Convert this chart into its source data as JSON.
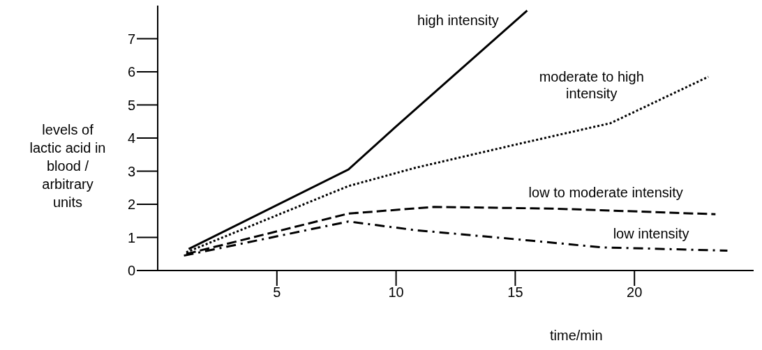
{
  "chart_data": {
    "type": "line",
    "xlabel": "time/min",
    "ylabel": "levels of lactic acid in blood / arbitrary units",
    "xlim": [
      0,
      25
    ],
    "ylim": [
      0,
      8
    ],
    "xticks": [
      5,
      10,
      15,
      20
    ],
    "yticks": [
      0,
      1,
      2,
      3,
      4,
      5,
      6,
      7
    ],
    "marker": "none",
    "series": [
      {
        "name": "high intensity",
        "color": "#000000",
        "line_style": "solid",
        "x": [
          1.3,
          8.0,
          10.0,
          15.5
        ],
        "values": [
          0.65,
          3.05,
          4.35,
          7.85
        ]
      },
      {
        "name": "moderate to high intensity",
        "color": "#000000",
        "line_style": "dotted",
        "x": [
          1.2,
          8.0,
          10.8,
          15.0,
          19.0,
          23.1
        ],
        "values": [
          0.55,
          2.55,
          3.1,
          3.8,
          4.45,
          5.85
        ]
      },
      {
        "name": "low to moderate intensity",
        "color": "#000000",
        "line_style": "dashed",
        "x": [
          1.2,
          8.0,
          11.6,
          16.6,
          23.4
        ],
        "values": [
          0.5,
          1.72,
          1.92,
          1.87,
          1.7
        ]
      },
      {
        "name": "low intensity",
        "color": "#000000",
        "line_style": "dashdot",
        "x": [
          1.1,
          8.0,
          10.8,
          15.7,
          18.6,
          23.9
        ],
        "values": [
          0.45,
          1.48,
          1.22,
          0.9,
          0.7,
          0.6
        ]
      }
    ]
  }
}
